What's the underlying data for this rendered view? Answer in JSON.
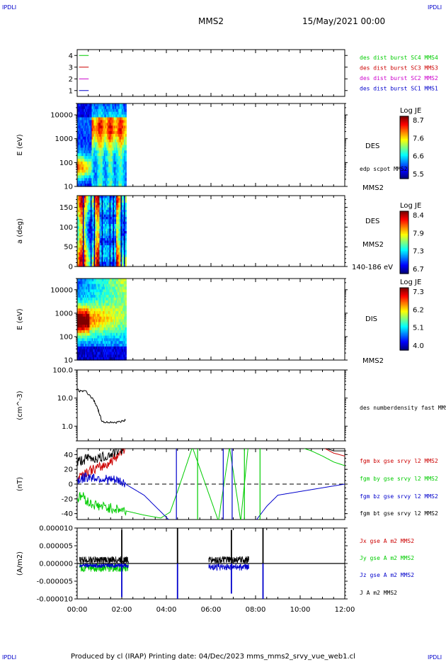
{
  "header": {
    "corner_left_top": "IPDLI",
    "corner_right_top": "IPDLI",
    "corner_left_bottom": "IPDLI",
    "corner_right_bottom": "IPDLI",
    "title": "MMS2",
    "date": "15/May/2021 00:00"
  },
  "footer": {
    "text": "Produced by cl (IRAP)   Printing date: 04/Dec/2023   mms_mms2_srvy_vue_web1.cl"
  },
  "chart_data": [
    {
      "type": "line",
      "panel": "burst-coverage",
      "ylim": [
        0.5,
        4.5
      ],
      "yticks": [
        1,
        2,
        3,
        4
      ],
      "series": [
        {
          "name": "des dist burst SC1 MMS1",
          "color": "#0000cc",
          "level": 1,
          "x_range": [
            "00:24",
            "00:50"
          ]
        },
        {
          "name": "des dist burst SC2 MMS2",
          "color": "#cc00cc",
          "level": 2,
          "x_range": [
            "00:24",
            "00:50"
          ]
        },
        {
          "name": "des dist burst SC3 MMS3",
          "color": "#cc0000",
          "level": 3,
          "x_range": [
            "00:24",
            "00:50"
          ]
        },
        {
          "name": "des dist burst SC4 MMS4",
          "color": "#00cc00",
          "level": 4,
          "x_range": [
            "00:24",
            "00:50"
          ]
        }
      ]
    },
    {
      "type": "heatmap",
      "panel": "des-energy",
      "ylabel": "E (eV)",
      "yscale": "log",
      "ylim": [
        10,
        30000
      ],
      "yticks": [
        "10",
        "100",
        "1000",
        "10000"
      ],
      "data_x_range": [
        "00:00",
        "02:12"
      ],
      "right_label": "DES",
      "right_sublabels": [
        "edp scpot MMS2",
        "MMS2"
      ],
      "colorbar": {
        "label": "Log JE",
        "min": 5.5,
        "max": 8.7,
        "ticks": [
          "8.7",
          "7.6",
          "6.6",
          "5.5"
        ]
      }
    },
    {
      "type": "heatmap",
      "panel": "des-pitch-angle",
      "ylabel": "a (deg)",
      "ylim": [
        0,
        180
      ],
      "yticks": [
        "0",
        "50",
        "100",
        "150"
      ],
      "data_x_range": [
        "00:00",
        "02:12"
      ],
      "right_label": "DES",
      "right_sublabels": [
        "MMS2",
        "140-186 eV"
      ],
      "colorbar": {
        "label": "Log JE",
        "min": 6.7,
        "max": 8.4,
        "ticks": [
          "8.4",
          "7.9",
          "7.3",
          "6.7"
        ]
      }
    },
    {
      "type": "heatmap",
      "panel": "dis-energy",
      "ylabel": "E (eV)",
      "yscale": "log",
      "ylim": [
        10,
        30000
      ],
      "yticks": [
        "10",
        "100",
        "1000",
        "10000"
      ],
      "data_x_range": [
        "00:00",
        "02:12"
      ],
      "right_label": "DIS",
      "right_sublabels": [
        "MMS2"
      ],
      "colorbar": {
        "label": "Log JE",
        "min": 4.0,
        "max": 7.3,
        "ticks": [
          "7.3",
          "6.2",
          "5.1",
          "4.0"
        ]
      }
    },
    {
      "type": "line",
      "panel": "density",
      "ylabel": "(cm^-3)",
      "yscale": "log",
      "ylim": [
        0.3,
        100
      ],
      "yticks": [
        "1.0",
        "10.0",
        "100.0"
      ],
      "series": [
        {
          "name": "des numberdensity fast MMS2",
          "color": "#000000",
          "x": [
            "00:00",
            "00:10",
            "00:20",
            "00:30",
            "00:40",
            "00:48",
            "00:55",
            "01:00",
            "01:05",
            "01:15",
            "01:30",
            "01:45",
            "02:00",
            "02:10"
          ],
          "y": [
            20,
            17,
            19,
            14,
            10,
            7,
            4,
            2.8,
            1.6,
            1.35,
            1.4,
            1.35,
            1.5,
            1.6
          ]
        }
      ]
    },
    {
      "type": "line",
      "panel": "magnetic-field",
      "ylabel": "(nT)",
      "ylim": [
        -48,
        48
      ],
      "yticks": [
        "-40",
        "-20",
        "0",
        "20",
        "40"
      ],
      "series": [
        {
          "name": "fgm bx gse srvy l2 MMS2",
          "color": "#cc0000",
          "x": [
            "00:00",
            "00:30",
            "01:00",
            "01:30",
            "02:00",
            "02:10",
            "11:00",
            "11:30",
            "12:00"
          ],
          "y": [
            10,
            18,
            22,
            30,
            45,
            50,
            50,
            42,
            38
          ]
        },
        {
          "name": "fgm by gse srvy l2 MMS2",
          "color": "#00cc00",
          "x": [
            "00:00",
            "00:15",
            "00:30",
            "01:00",
            "02:00",
            "03:00",
            "03:45",
            "04:10",
            "04:30",
            "05:10",
            "06:20",
            "06:50",
            "07:20",
            "07:40",
            "10:00",
            "10:30",
            "11:00",
            "11:30",
            "12:00"
          ],
          "y": [
            -20,
            -15,
            -25,
            -30,
            -35,
            -42,
            -46,
            -38,
            -10,
            50,
            -50,
            50,
            -50,
            50,
            50,
            45,
            38,
            30,
            25
          ]
        },
        {
          "name": "fgm bz gse srvy l2 MMS2",
          "color": "#0000cc",
          "x": [
            "00:00",
            "00:30",
            "01:00",
            "02:00",
            "03:00",
            "03:50",
            "04:10",
            "08:00",
            "08:30",
            "09:00",
            "10:00",
            "11:00",
            "12:00"
          ],
          "y": [
            5,
            10,
            8,
            3,
            -15,
            -40,
            -50,
            -50,
            -30,
            -15,
            -10,
            -5,
            0
          ]
        },
        {
          "name": "fgm bt gse srvy l2 MMS2",
          "color": "#000000",
          "x": [
            "00:00",
            "00:30",
            "01:00",
            "01:30",
            "02:00",
            "02:10",
            "11:00",
            "11:30",
            "12:00"
          ],
          "y": [
            30,
            35,
            35,
            40,
            48,
            50,
            50,
            45,
            45
          ]
        }
      ]
    },
    {
      "type": "line",
      "panel": "current-density",
      "ylabel": "(A/m2)",
      "ylim": [
        -1e-05,
        1e-05
      ],
      "yticks": [
        "-0.000010",
        "-0.000005",
        "0.000000",
        "0.000005",
        "0.000010"
      ],
      "xticks": [
        "00:00",
        "02:00",
        "04:00",
        "06:00",
        "08:00",
        "10:00",
        "12:00"
      ],
      "series": [
        {
          "name": "Jx gse A m2 MMS2",
          "color": "#cc0000"
        },
        {
          "name": "Jy gse A m2 MMS2",
          "color": "#00cc00"
        },
        {
          "name": "Jz gse A m2 MMS2",
          "color": "#0000cc"
        },
        {
          "name": "J A m2 MMS2",
          "color": "#000000"
        }
      ],
      "spikes": [
        {
          "x": "02:00",
          "J": 9.5e-06,
          "Jz": -9.5e-06
        },
        {
          "x": "04:30",
          "J": 1e-05,
          "Jz": -1e-05
        },
        {
          "x": "06:55",
          "J": 9.5e-06,
          "Jz": -8.5e-06
        },
        {
          "x": "08:20",
          "J": 1e-05,
          "Jz": -1e-05
        }
      ]
    }
  ]
}
